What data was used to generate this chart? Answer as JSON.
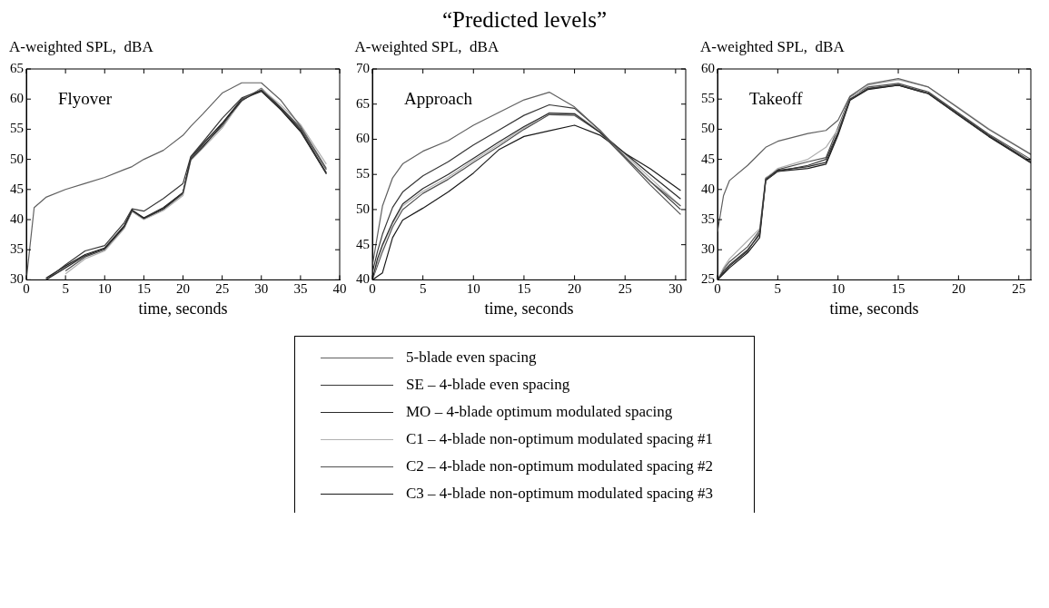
{
  "chart_data": [
    {
      "type": "line",
      "ylabel": "A-weighted SPL,  dBA",
      "xlabel": "time, seconds",
      "annotations": [
        "Flyover"
      ],
      "xlim": [
        0,
        40
      ],
      "xticks": [
        0,
        5,
        10,
        15,
        20,
        25,
        30,
        35,
        40
      ],
      "ylim": [
        30,
        65
      ],
      "yticks": [
        30,
        35,
        40,
        45,
        50,
        55,
        60,
        65
      ],
      "x": [
        0,
        1,
        2.5,
        5,
        7.5,
        10,
        12.5,
        13.5,
        15,
        17.5,
        20,
        21,
        22.5,
        25,
        27.5,
        30,
        32.5,
        35,
        38.3
      ],
      "series": [
        {
          "color": "#606060",
          "values": [
            30,
            42,
            43.7,
            45,
            46,
            47,
            48.3,
            48.8,
            50,
            51.5,
            54,
            55.5,
            57.5,
            61,
            62.7,
            62.7,
            59.8,
            55.5,
            48.5
          ]
        },
        {
          "color": "#383838",
          "values": [
            null,
            null,
            30,
            32.5,
            34.8,
            35.7,
            39.5,
            41.8,
            41.4,
            43.5,
            46,
            50.5,
            52.8,
            56.8,
            60.2,
            61.5,
            58.5,
            55,
            47.8
          ]
        },
        {
          "color": "#2a2a2a",
          "values": [
            null,
            null,
            30,
            32,
            34,
            35.2,
            38.8,
            41.5,
            40.2,
            41.8,
            44.5,
            50,
            52,
            55.8,
            59.8,
            61.5,
            58.3,
            54.8,
            47.6
          ]
        },
        {
          "color": "#b0b0b0",
          "values": [
            null,
            null,
            null,
            31,
            33.5,
            34.8,
            38.5,
            41.3,
            40,
            41.5,
            44,
            49.8,
            51.8,
            55.2,
            59.8,
            61.7,
            59,
            55.8,
            49.2
          ]
        },
        {
          "color": "#505050",
          "values": [
            null,
            null,
            null,
            31.5,
            33.8,
            35,
            38.7,
            41.4,
            40.1,
            41.7,
            44.3,
            50.2,
            52.2,
            55.5,
            59.7,
            61.8,
            58.6,
            55.3,
            48.3
          ]
        },
        {
          "color": "#1a1a1a",
          "values": [
            null,
            null,
            30.3,
            32.3,
            34.2,
            35.3,
            39,
            41.6,
            40.3,
            42,
            44.5,
            50.3,
            52.5,
            56,
            60,
            61.3,
            58.2,
            54.6,
            47.6
          ]
        }
      ]
    },
    {
      "type": "line",
      "title": "“Predicted levels”",
      "ylabel": "A-weighted SPL,  dBA",
      "xlabel": "time, seconds",
      "annotations": [
        "Approach"
      ],
      "legend": "bottom",
      "xlim": [
        0,
        31
      ],
      "xticks": [
        0,
        5,
        10,
        15,
        20,
        25,
        30
      ],
      "ylim": [
        40,
        70
      ],
      "yticks": [
        40,
        45,
        50,
        55,
        60,
        65,
        70
      ],
      "x": [
        0,
        0.5,
        1,
        2,
        3,
        5,
        7.5,
        10,
        12.5,
        15,
        17.5,
        20,
        22.5,
        25,
        27.5,
        30.5
      ],
      "series": [
        {
          "name": "5-blade even spacing",
          "color": "#606060",
          "values": [
            42,
            46.3,
            50.5,
            54.5,
            56.5,
            58.3,
            59.8,
            62,
            63.8,
            65.6,
            66.7,
            64.6,
            61.3,
            57.5,
            54,
            50.5
          ]
        },
        {
          "name": "SE – 4-blade even spacing",
          "color": "#383838",
          "values": [
            41,
            44,
            46.5,
            50.3,
            52.5,
            54.8,
            56.8,
            59.2,
            61.3,
            63.4,
            64.9,
            64.4,
            61.3,
            57.5,
            54,
            50
          ]
        },
        {
          "name": "MO – 4-blade optimum modulated spacing",
          "color": "#2a2a2a",
          "values": [
            40,
            43,
            45,
            48.2,
            50.8,
            53,
            55,
            57.3,
            59.6,
            61.8,
            63.7,
            63.6,
            61,
            58,
            55,
            51.5
          ]
        },
        {
          "name": "C1 – 4-blade non-optimum modulated spacing #1",
          "color": "#b0b0b0",
          "values": [
            40,
            42.5,
            44.8,
            48,
            50.5,
            52.6,
            54.6,
            57,
            59.3,
            61.6,
            63.8,
            63.7,
            61.2,
            57.8,
            54.5,
            50.5
          ]
        },
        {
          "name": "C2 – 4-blade non-optimum modulated spacing #2",
          "color": "#505050",
          "values": [
            40,
            42,
            44,
            47.5,
            50,
            52.3,
            54.3,
            56.7,
            59,
            61.4,
            63.5,
            63.4,
            61,
            57.3,
            53.5,
            49.3
          ]
        },
        {
          "name": "C3 – 4-blade non-optimum modulated spacing #3",
          "color": "#1a1a1a",
          "values": [
            40,
            40.5,
            41,
            46,
            48.5,
            50.2,
            52.5,
            55.2,
            58.5,
            60.4,
            61.2,
            62,
            60.6,
            58,
            55.8,
            52.7
          ]
        }
      ]
    },
    {
      "type": "line",
      "ylabel": "A-weighted SPL,  dBA",
      "xlabel": "time, seconds",
      "annotations": [
        "Takeoff"
      ],
      "xlim": [
        0,
        26
      ],
      "xticks": [
        0,
        5,
        10,
        15,
        20,
        25
      ],
      "ylim": [
        25,
        60
      ],
      "yticks": [
        25,
        30,
        35,
        40,
        45,
        50,
        55,
        60
      ],
      "x": [
        0,
        0.5,
        1,
        2.5,
        3.5,
        4,
        5,
        7.5,
        9,
        10,
        11,
        12.5,
        15,
        17.5,
        20,
        22.5,
        26
      ],
      "series": [
        {
          "color": "#606060",
          "values": [
            33,
            39,
            41.5,
            44,
            46,
            47,
            48,
            49.3,
            49.8,
            51.5,
            55.5,
            57.5,
            58.4,
            57,
            53.5,
            50,
            45.8
          ]
        },
        {
          "color": "#383838",
          "values": [
            25,
            26.5,
            27.5,
            30,
            32.5,
            41.5,
            43,
            44,
            45,
            49.5,
            55,
            56.8,
            57.4,
            56,
            52.5,
            49,
            44.7
          ]
        },
        {
          "color": "#2a2a2a",
          "values": [
            25,
            26.2,
            27.3,
            29.8,
            32.8,
            41.7,
            43.2,
            43.8,
            44.5,
            49.3,
            55,
            56.7,
            57.3,
            55.9,
            52.4,
            48.9,
            44.5
          ]
        },
        {
          "color": "#b0b0b0",
          "values": [
            25,
            27,
            28.5,
            31.5,
            33.5,
            41.8,
            43.5,
            45,
            47,
            50,
            55.2,
            57.3,
            58.2,
            57,
            53.6,
            50.1,
            45.9
          ]
        },
        {
          "color": "#505050",
          "values": [
            25,
            26.8,
            28,
            30.5,
            33.2,
            41.9,
            43.3,
            44.6,
            45.3,
            50.3,
            55.4,
            57,
            57.6,
            56.2,
            52.7,
            49.2,
            45
          ]
        },
        {
          "color": "#1a1a1a",
          "values": [
            25,
            26,
            27,
            29.5,
            32,
            41.5,
            43,
            43.5,
            44.2,
            49,
            54.8,
            56.6,
            57.3,
            55.9,
            52.3,
            48.8,
            44.4
          ]
        }
      ]
    }
  ]
}
